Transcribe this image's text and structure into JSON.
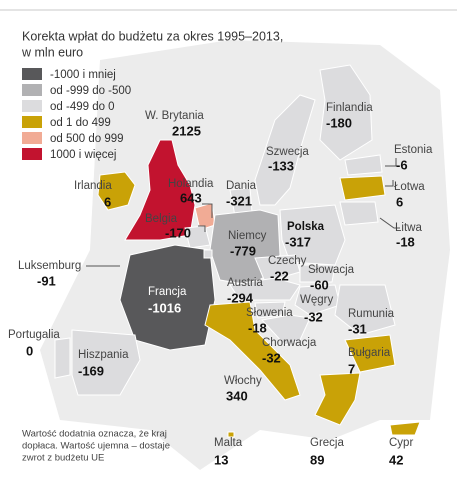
{
  "title": "Korekta wpłat do budżetu za okres 1995–2013,",
  "subtitle": "w mln euro",
  "legend": [
    {
      "label": "-1000 i mniej",
      "color": "#58585a"
    },
    {
      "label": "od -999 do -500",
      "color": "#b1b1b3"
    },
    {
      "label": "od -499 do 0",
      "color": "#dcdcde"
    },
    {
      "label": "od 1 do 499",
      "color": "#c9a207"
    },
    {
      "label": "od 500 do 999",
      "color": "#f1ab95"
    },
    {
      "label": "1000 i więcej",
      "color": "#c2132f"
    }
  ],
  "countries": [
    {
      "name": "W. Brytania",
      "value": 2125,
      "color": "#c2132f"
    },
    {
      "name": "Irlandia",
      "value": 6,
      "color": "#c9a207"
    },
    {
      "name": "Holandia",
      "value": 643,
      "color": "#f1ab95"
    },
    {
      "name": "Belgia",
      "value": -170,
      "color": "#dcdcde"
    },
    {
      "name": "Dania",
      "value": -321,
      "color": "#dcdcde"
    },
    {
      "name": "Niemcy",
      "value": -779,
      "color": "#b1b1b3"
    },
    {
      "name": "Polska",
      "value": -317,
      "color": "#dcdcde"
    },
    {
      "name": "Szwecja",
      "value": -133,
      "color": "#dcdcde"
    },
    {
      "name": "Finlandia",
      "value": -180,
      "color": "#dcdcde"
    },
    {
      "name": "Estonia",
      "value": -6,
      "color": "#dcdcde"
    },
    {
      "name": "Łotwa",
      "value": 6,
      "color": "#c9a207"
    },
    {
      "name": "Litwa",
      "value": -18,
      "color": "#dcdcde"
    },
    {
      "name": "Czechy",
      "value": -22,
      "color": "#dcdcde"
    },
    {
      "name": "Słowacja",
      "value": -60,
      "color": "#dcdcde"
    },
    {
      "name": "Austria",
      "value": -294,
      "color": "#dcdcde"
    },
    {
      "name": "Węgry",
      "value": -32,
      "color": "#dcdcde"
    },
    {
      "name": "Słowenia",
      "value": -18,
      "color": "#dcdcde"
    },
    {
      "name": "Chorwacja",
      "value": -32,
      "color": "#dcdcde"
    },
    {
      "name": "Rumunia",
      "value": -31,
      "color": "#dcdcde"
    },
    {
      "name": "Bułgaria",
      "value": 7,
      "color": "#c9a207"
    },
    {
      "name": "Francja",
      "value": -1016,
      "color": "#58585a"
    },
    {
      "name": "Luksemburg",
      "value": -91,
      "color": "#dcdcde"
    },
    {
      "name": "Portugalia",
      "value": 0,
      "color": "#dcdcde"
    },
    {
      "name": "Hiszpania",
      "value": -169,
      "color": "#dcdcde"
    },
    {
      "name": "Włochy",
      "value": 340,
      "color": "#c9a207"
    },
    {
      "name": "Malta",
      "value": 13,
      "color": "#c9a207"
    },
    {
      "name": "Grecja",
      "value": 89,
      "color": "#c9a207"
    },
    {
      "name": "Cypr",
      "value": 42,
      "color": "#c9a207"
    }
  ],
  "footnote": [
    "Wartość dodatnia oznacza, że kraj",
    "dopłaca. Wartość ujemna – dostaje",
    "zwrot z budżetu UE"
  ]
}
